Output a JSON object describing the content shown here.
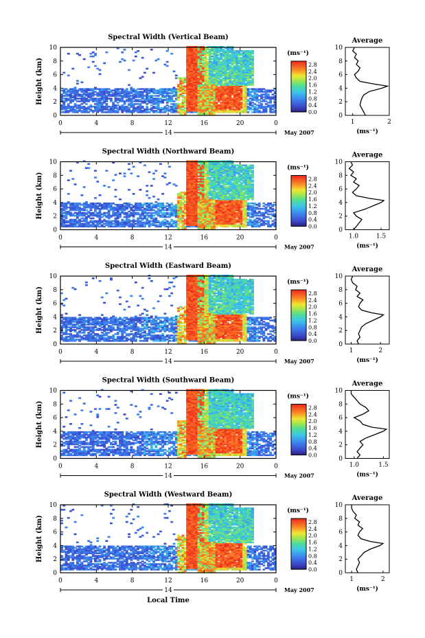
{
  "figure": {
    "xlabel": "Local Time",
    "ylabel": "Height (km)",
    "colorbar_unit": "(ms⁻¹)",
    "date_label": "May 2007",
    "day_label": "14",
    "avg_title": "Average",
    "avg_xlabel": "(ms⁻¹)"
  },
  "chart_data": [
    {
      "type": "heatmap",
      "title": "Spectral Width (Vertical Beam)",
      "x_ticks": [
        "0",
        "4",
        "8",
        "12",
        "16",
        "20",
        "0"
      ],
      "xlim": [
        0,
        24
      ],
      "y_ticks": [
        "0",
        "2",
        "4",
        "6",
        "8",
        "10"
      ],
      "ylim": [
        0,
        10
      ],
      "colorbar_ticks": [
        "0.0",
        "0.4",
        "0.8",
        "1.2",
        "1.6",
        "2.0",
        "2.4",
        "2.8"
      ],
      "colorbar_range": [
        0,
        3.0
      ],
      "average": {
        "x_ticks": [
          "1",
          "2"
        ],
        "xlim": [
          0.8,
          2.0
        ],
        "ylim": [
          0,
          10
        ],
        "profile": [
          [
            0,
            1.35
          ],
          [
            0.5,
            1.3
          ],
          [
            1,
            1.25
          ],
          [
            1.5,
            1.2
          ],
          [
            2,
            1.22
          ],
          [
            2.5,
            1.25
          ],
          [
            3,
            1.3
          ],
          [
            3.5,
            1.45
          ],
          [
            4,
            1.8
          ],
          [
            4.3,
            1.95
          ],
          [
            4.6,
            1.6
          ],
          [
            5,
            1.2
          ],
          [
            5.5,
            1.1
          ],
          [
            6,
            1.05
          ],
          [
            6.5,
            1.15
          ],
          [
            7,
            1.2
          ],
          [
            7.5,
            1.1
          ],
          [
            8,
            1.15
          ],
          [
            8.5,
            1.05
          ],
          [
            9,
            1.1
          ],
          [
            9.5,
            1.0
          ],
          [
            10,
            1.05
          ]
        ]
      }
    },
    {
      "type": "heatmap",
      "title": "Spectral Width (Northward Beam)",
      "x_ticks": [
        "0",
        "4",
        "8",
        "12",
        "16",
        "20",
        "0"
      ],
      "xlim": [
        0,
        24
      ],
      "y_ticks": [
        "0",
        "2",
        "4",
        "6",
        "8",
        "10"
      ],
      "ylim": [
        0,
        10
      ],
      "colorbar_ticks": [
        "0.0",
        "0.4",
        "0.8",
        "1.2",
        "1.6",
        "2.0",
        "2.4",
        "2.8"
      ],
      "colorbar_range": [
        0,
        3.0
      ],
      "average": {
        "x_ticks": [
          "1.0",
          "1.5"
        ],
        "xlim": [
          0.85,
          1.65
        ],
        "ylim": [
          0,
          10
        ],
        "profile": [
          [
            0,
            1.0
          ],
          [
            0.5,
            1.05
          ],
          [
            1,
            1.1
          ],
          [
            1.5,
            1.15
          ],
          [
            2,
            1.05
          ],
          [
            2.5,
            1.0
          ],
          [
            3,
            1.2
          ],
          [
            3.5,
            1.35
          ],
          [
            4,
            1.5
          ],
          [
            4.3,
            1.55
          ],
          [
            4.6,
            1.3
          ],
          [
            5,
            1.05
          ],
          [
            5.5,
            0.98
          ],
          [
            6,
            1.05
          ],
          [
            6.5,
            1.1
          ],
          [
            7,
            1.0
          ],
          [
            7.5,
            1.05
          ],
          [
            8,
            0.95
          ],
          [
            8.5,
            1.0
          ],
          [
            9,
            0.92
          ],
          [
            9.5,
            0.98
          ],
          [
            10,
            0.95
          ]
        ]
      }
    },
    {
      "type": "heatmap",
      "title": "Spectral Width (Eastward Beam)",
      "x_ticks": [
        "0",
        "4",
        "8",
        "12",
        "16",
        "20",
        "0"
      ],
      "xlim": [
        0,
        24
      ],
      "y_ticks": [
        "0",
        "2",
        "4",
        "6",
        "8",
        "10"
      ],
      "ylim": [
        0,
        10
      ],
      "colorbar_ticks": [
        "0.0",
        "0.4",
        "0.8",
        "1.2",
        "1.6",
        "2.0",
        "2.4",
        "2.8"
      ],
      "colorbar_range": [
        0,
        3.0
      ],
      "average": {
        "x_ticks": [
          "1",
          "2"
        ],
        "xlim": [
          0.8,
          2.3
        ],
        "ylim": [
          0,
          10
        ],
        "profile": [
          [
            0,
            1.25
          ],
          [
            0.5,
            1.2
          ],
          [
            1,
            1.3
          ],
          [
            1.5,
            1.25
          ],
          [
            2,
            1.3
          ],
          [
            2.5,
            1.35
          ],
          [
            3,
            1.5
          ],
          [
            3.5,
            1.75
          ],
          [
            4,
            2.0
          ],
          [
            4.3,
            2.1
          ],
          [
            4.6,
            1.7
          ],
          [
            5,
            1.35
          ],
          [
            5.5,
            1.25
          ],
          [
            6,
            1.3
          ],
          [
            6.5,
            1.4
          ],
          [
            7,
            1.2
          ],
          [
            7.5,
            1.3
          ],
          [
            8,
            1.15
          ],
          [
            8.5,
            1.2
          ],
          [
            9,
            1.05
          ],
          [
            9.5,
            1.0
          ],
          [
            10,
            1.05
          ]
        ]
      }
    },
    {
      "type": "heatmap",
      "title": "Spectral Width (Southward Beam)",
      "x_ticks": [
        "0",
        "4",
        "8",
        "12",
        "16",
        "20",
        "0"
      ],
      "xlim": [
        0,
        24
      ],
      "y_ticks": [
        "0",
        "2",
        "4",
        "6",
        "8",
        "10"
      ],
      "ylim": [
        0,
        10
      ],
      "colorbar_ticks": [
        "0.0",
        "0.4",
        "0.8",
        "1.2",
        "1.6",
        "2.0",
        "2.4",
        "2.8"
      ],
      "colorbar_range": [
        0,
        3.0
      ],
      "average": {
        "x_ticks": [
          "1.0",
          "1.5"
        ],
        "xlim": [
          0.85,
          1.6
        ],
        "ylim": [
          0,
          10
        ],
        "profile": [
          [
            0,
            1.05
          ],
          [
            0.5,
            1.1
          ],
          [
            1,
            1.05
          ],
          [
            1.5,
            1.1
          ],
          [
            2,
            1.15
          ],
          [
            2.5,
            1.1
          ],
          [
            3,
            1.2
          ],
          [
            3.5,
            1.35
          ],
          [
            4,
            1.5
          ],
          [
            4.3,
            1.55
          ],
          [
            4.6,
            1.3
          ],
          [
            5,
            1.15
          ],
          [
            5.5,
            1.1
          ],
          [
            6,
            1.0
          ],
          [
            6.5,
            1.15
          ],
          [
            7,
            1.25
          ],
          [
            7.5,
            1.2
          ],
          [
            8,
            1.1
          ],
          [
            8.5,
            1.05
          ],
          [
            9,
            1.0
          ],
          [
            9.5,
            0.95
          ],
          [
            10,
            0.95
          ]
        ]
      }
    },
    {
      "type": "heatmap",
      "title": "Spectral Width (Westward Beam)",
      "x_ticks": [
        "0",
        "4",
        "8",
        "12",
        "16",
        "20",
        "0"
      ],
      "xlim": [
        0,
        24
      ],
      "y_ticks": [
        "0",
        "2",
        "4",
        "6",
        "8",
        "10"
      ],
      "ylim": [
        0,
        10
      ],
      "colorbar_ticks": [
        "0.0",
        "0.4",
        "0.8",
        "1.2",
        "1.6",
        "2.0",
        "2.4",
        "2.8"
      ],
      "colorbar_range": [
        0,
        3.0
      ],
      "average": {
        "x_ticks": [
          "1",
          "2"
        ],
        "xlim": [
          0.8,
          2.2
        ],
        "ylim": [
          0,
          10
        ],
        "profile": [
          [
            0,
            1.2
          ],
          [
            0.5,
            1.15
          ],
          [
            1,
            1.2
          ],
          [
            1.5,
            1.25
          ],
          [
            2,
            1.2
          ],
          [
            2.5,
            1.3
          ],
          [
            3,
            1.4
          ],
          [
            3.5,
            1.6
          ],
          [
            4,
            1.9
          ],
          [
            4.3,
            2.0
          ],
          [
            4.6,
            1.6
          ],
          [
            5,
            1.3
          ],
          [
            5.5,
            1.2
          ],
          [
            6,
            1.25
          ],
          [
            6.5,
            1.35
          ],
          [
            7,
            1.2
          ],
          [
            7.5,
            1.25
          ],
          [
            8,
            1.1
          ],
          [
            8.5,
            1.15
          ],
          [
            9,
            1.05
          ],
          [
            9.5,
            1.0
          ],
          [
            10,
            1.0
          ]
        ]
      }
    }
  ]
}
